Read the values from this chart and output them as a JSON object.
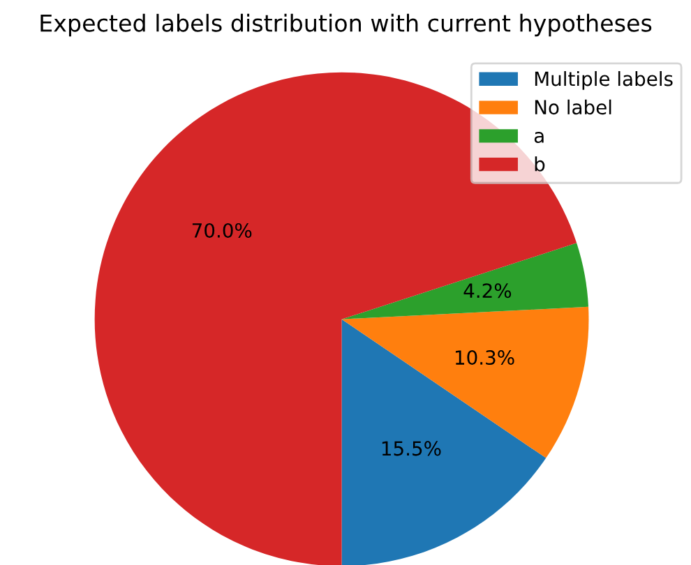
{
  "chart_data": {
    "type": "pie",
    "title": "Expected labels distribution with current hypotheses",
    "categories": [
      "Multiple labels",
      "No label",
      "a",
      "b"
    ],
    "values": [
      15.5,
      10.3,
      4.2,
      70.0
    ],
    "colors": [
      "#1f77b4",
      "#ff7f0e",
      "#2ca02c",
      "#d62728"
    ],
    "value_labels": [
      "15.5%",
      "10.3%",
      "4.2%",
      "70.0%"
    ],
    "legend": "top right"
  }
}
